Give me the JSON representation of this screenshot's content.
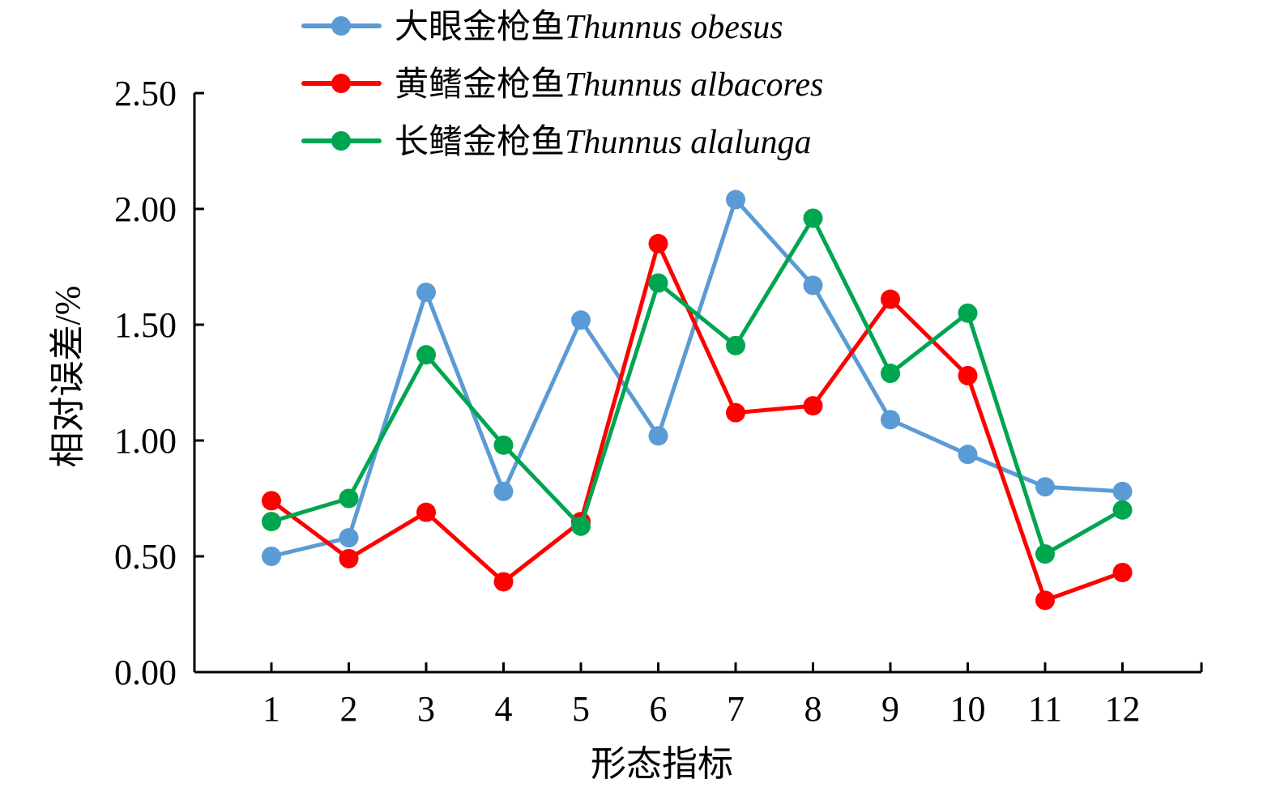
{
  "chart_data": {
    "type": "line",
    "title": "",
    "xlabel": "形态指标",
    "ylabel": "相对误差/%",
    "categories": [
      "1",
      "2",
      "3",
      "4",
      "5",
      "6",
      "7",
      "8",
      "9",
      "10",
      "11",
      "12"
    ],
    "ylim": [
      0,
      2.5
    ],
    "yticks": [
      "0.00",
      "0.50",
      "1.00",
      "1.50",
      "2.00",
      "2.50"
    ],
    "legend_position": "top",
    "grid": false,
    "series": [
      {
        "name_cn": "大眼金枪鱼",
        "name_latin": "Thunnus obesus",
        "color": "#5b9bd5",
        "values": [
          0.5,
          0.58,
          1.64,
          0.78,
          1.52,
          1.02,
          2.04,
          1.67,
          1.09,
          0.94,
          0.8,
          0.78
        ]
      },
      {
        "name_cn": "黄鳍金枪鱼",
        "name_latin": "Thunnus albacores",
        "color": "#ff0000",
        "values": [
          0.74,
          0.49,
          0.69,
          0.39,
          0.65,
          1.85,
          1.12,
          1.15,
          1.61,
          1.28,
          0.31,
          0.43
        ]
      },
      {
        "name_cn": "长鳍金枪鱼",
        "name_latin": "Thunnus alalunga",
        "color": "#00a550",
        "values": [
          0.65,
          0.75,
          1.37,
          0.98,
          0.63,
          1.68,
          1.41,
          1.96,
          1.29,
          1.55,
          0.51,
          0.7
        ]
      }
    ]
  }
}
